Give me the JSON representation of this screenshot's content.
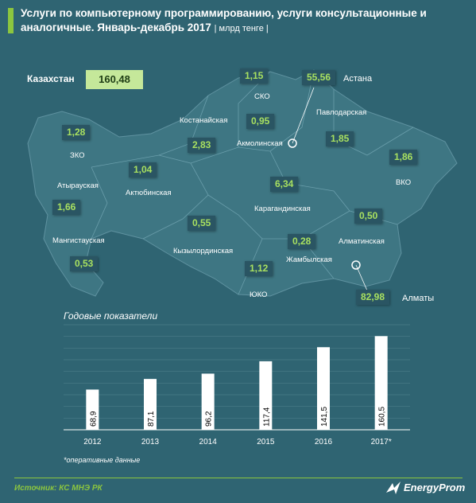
{
  "title": {
    "main": "Услуги по компьютерному программированию, услуги консультационные и аналогичные. Январь-декабрь 2017",
    "unit": "| млрд тенге |"
  },
  "national": {
    "label": "Казахстан",
    "value": "160,48"
  },
  "regions": [
    {
      "name": "ЗКО",
      "value": "1,28"
    },
    {
      "name": "Атырауская",
      "value": "1,66"
    },
    {
      "name": "Мангистауская",
      "value": "0,53"
    },
    {
      "name": "Актюбинская",
      "value": "1,04"
    },
    {
      "name": "Костанайская",
      "value": "2,83"
    },
    {
      "name": "СКО",
      "value": "1,15"
    },
    {
      "name": "Акмолинская",
      "value": "0,95"
    },
    {
      "name": "Астана",
      "value": "55,56"
    },
    {
      "name": "Павлодарская",
      "value": "1,85"
    },
    {
      "name": "ВКО",
      "value": "1,86"
    },
    {
      "name": "Карагандинская",
      "value": "6,34"
    },
    {
      "name": "Кызылординская",
      "value": "0,55"
    },
    {
      "name": "Жамбылская",
      "value": "0,28"
    },
    {
      "name": "Алматинская",
      "value": "0,50"
    },
    {
      "name": "ЮКО",
      "value": "1,12"
    },
    {
      "name": "Алматы",
      "value": "82,98"
    }
  ],
  "chart_data": {
    "type": "bar",
    "title": "Годовые показатели",
    "categories": [
      "2012",
      "2013",
      "2014",
      "2015",
      "2016",
      "2017*"
    ],
    "values": [
      68.9,
      87.1,
      96.2,
      117.4,
      141.5,
      160.5
    ],
    "value_labels": [
      "68,9",
      "87,1",
      "96,2",
      "117,4",
      "141,5",
      "160,5"
    ],
    "ylim": [
      0,
      180
    ],
    "grid": true,
    "bar_color": "#ffffff",
    "label_color": "#000000"
  },
  "footnote": "*оперативные данные",
  "source": "Источник: КС МНЭ РК",
  "logo_text": "EnergyProm",
  "colors": {
    "background": "#2f6472",
    "map": "#3e7683",
    "accent": "#8cc63f"
  }
}
